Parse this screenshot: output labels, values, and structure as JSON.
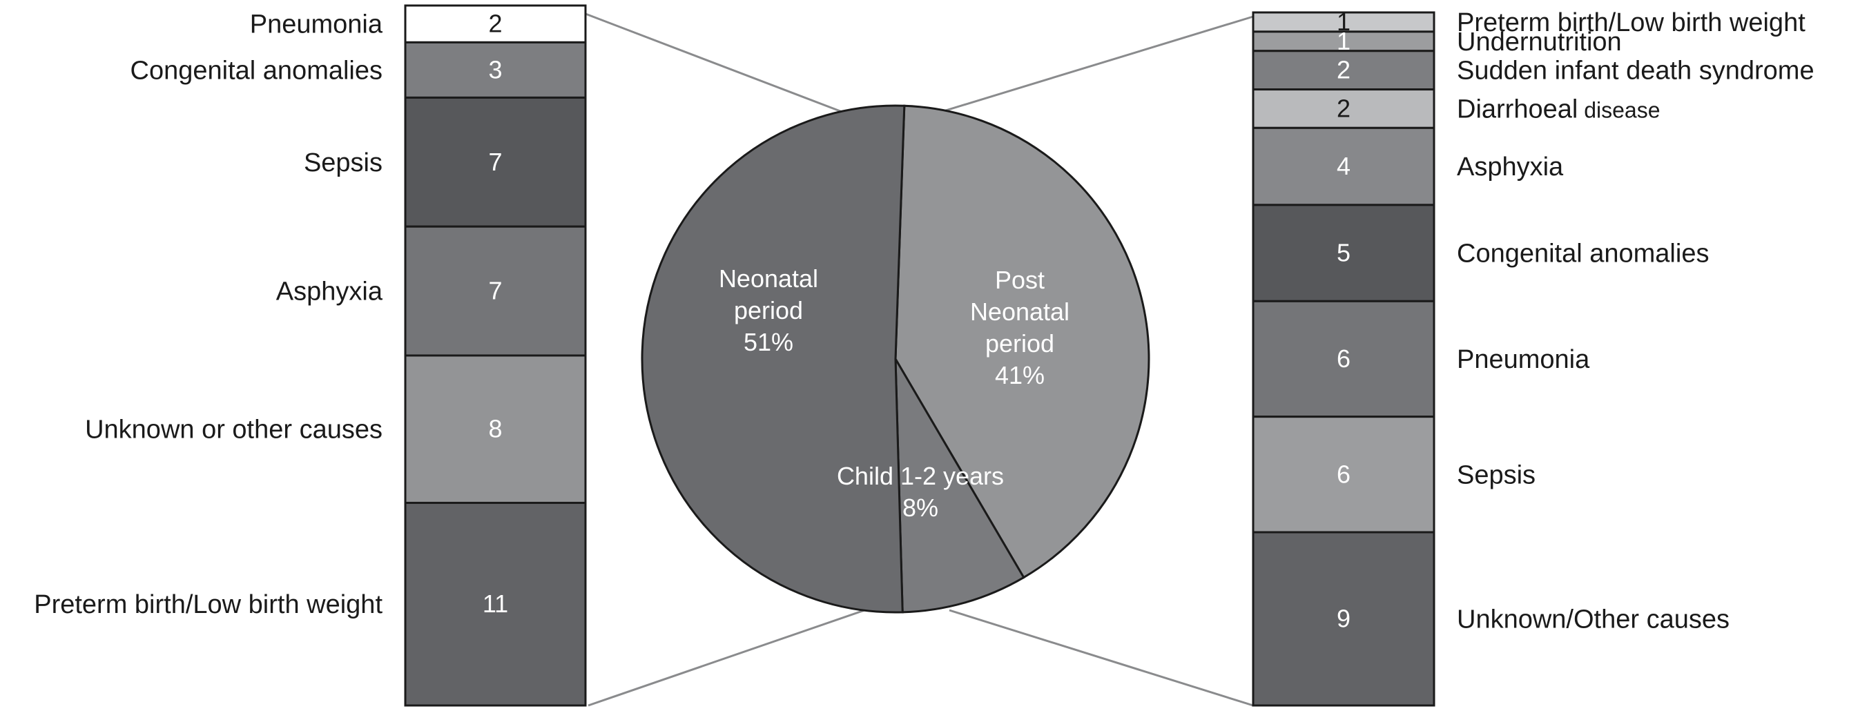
{
  "chart_data": {
    "type": "bar-of-pie",
    "pie": {
      "slices": [
        {
          "name_lines": [
            "Neonatal",
            "period"
          ],
          "value_label": "51%",
          "value": 51,
          "color": "#6a6b6e"
        },
        {
          "name_lines": [
            "Post",
            "Neonatal",
            "period"
          ],
          "value_label": "41%",
          "value": 41,
          "color": "#949597"
        },
        {
          "name_lines": [
            "Child 1-2 years"
          ],
          "value_label": "8%",
          "value": 8,
          "color": "#7a7b7e"
        }
      ]
    },
    "left_bar": {
      "segments_top_to_bottom": [
        {
          "label": "Pneumonia",
          "value": 2,
          "color": "#ffffff"
        },
        {
          "label": "Congenital anomalies",
          "value": 3,
          "color": "#7d7e81"
        },
        {
          "label": "Sepsis",
          "value": 7,
          "color": "#57585b"
        },
        {
          "label": "Asphyxia",
          "value": 7,
          "color": "#747578"
        },
        {
          "label": "Unknown or other causes",
          "value": 8,
          "color": "#939496"
        },
        {
          "label": "Preterm birth/Low birth weight",
          "value": 11,
          "color": "#626366"
        }
      ]
    },
    "right_bar": {
      "segments_top_to_bottom": [
        {
          "label": "Preterm birth/Low birth weight",
          "value": 1,
          "color": "#c7c8ca"
        },
        {
          "label": "Undernutrition",
          "value": 1,
          "color": "#9c9d9f"
        },
        {
          "label": "Sudden infant death syndrome",
          "value": 2,
          "color": "#7d7e81"
        },
        {
          "label": "Diarrhoeal",
          "label_small": "disease",
          "value": 2,
          "color": "#b9babc"
        },
        {
          "label": "Asphyxia",
          "value": 4,
          "color": "#87888b"
        },
        {
          "label": "Congenital anomalies",
          "value": 5,
          "color": "#57585b"
        },
        {
          "label": "Pneumonia",
          "value": 6,
          "color": "#747578"
        },
        {
          "label": "Sepsis",
          "value": 6,
          "color": "#9c9d9f"
        },
        {
          "label": "Unknown/Other causes",
          "value": 9,
          "color": "#626366"
        }
      ]
    }
  }
}
